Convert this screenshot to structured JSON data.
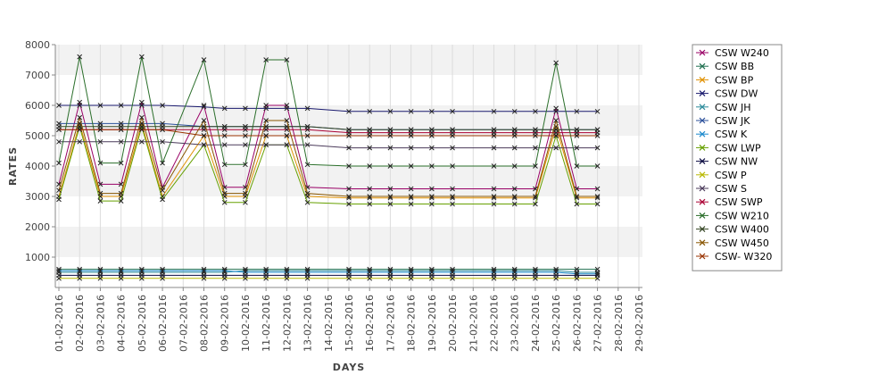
{
  "chart_data": {
    "type": "line",
    "xlabel": "DAYS",
    "ylabel": "RATES",
    "ylim": [
      0,
      8000
    ],
    "yticks": [
      1000,
      2000,
      3000,
      4000,
      5000,
      6000,
      7000,
      8000
    ],
    "grid": "horizontal alternating bands",
    "legend": "right",
    "x": [
      "01-02-2016",
      "02-02-2016",
      "03-02-2016",
      "04-02-2016",
      "05-02-2016",
      "06-02-2016",
      "07-02-2016",
      "08-02-2016",
      "09-02-2016",
      "10-02-2016",
      "11-02-2016",
      "12-02-2016",
      "13-02-2016",
      "14-02-2016",
      "15-02-2016",
      "16-02-2016",
      "17-02-2016",
      "18-02-2016",
      "19-02-2016",
      "20-02-2016",
      "21-02-2016",
      "22-02-2016",
      "23-02-2016",
      "24-02-2016",
      "25-02-2016",
      "26-02-2016",
      "27-02-2016",
      "28-02-2016",
      "29-02-2016"
    ],
    "series": [
      {
        "name": "CSW  W240",
        "color": "#990066",
        "values": [
          3400,
          6100,
          3400,
          3400,
          6100,
          3300,
          null,
          6000,
          3300,
          3300,
          6000,
          6000,
          3300,
          null,
          3250,
          3250,
          3250,
          3250,
          3250,
          3250,
          null,
          3250,
          3250,
          3250,
          5900,
          3250,
          3250,
          null,
          null
        ]
      },
      {
        "name": "CSW BB",
        "color": "#1f6f4f",
        "values": [
          600,
          600,
          600,
          600,
          600,
          600,
          null,
          600,
          600,
          600,
          600,
          600,
          600,
          null,
          600,
          600,
          600,
          600,
          600,
          600,
          null,
          600,
          600,
          600,
          600,
          600,
          600,
          null,
          null
        ]
      },
      {
        "name": "CSW BP",
        "color": "#e09000",
        "values": [
          3000,
          5400,
          3000,
          3000,
          5400,
          3000,
          null,
          5000,
          3000,
          3000,
          5000,
          5000,
          3000,
          null,
          2950,
          2950,
          2950,
          2950,
          2950,
          2950,
          null,
          2950,
          2950,
          2950,
          5300,
          2950,
          2950,
          null,
          null
        ]
      },
      {
        "name": "CSW DW",
        "color": "#1a1a6e",
        "values": [
          6000,
          6000,
          6000,
          6000,
          6000,
          6000,
          null,
          5950,
          5900,
          5900,
          5900,
          5900,
          5900,
          null,
          5800,
          5800,
          5800,
          5800,
          5800,
          5800,
          null,
          5800,
          5800,
          5800,
          5800,
          5800,
          5800,
          null,
          null
        ]
      },
      {
        "name": "CSW JH",
        "color": "#2a8a9a",
        "values": [
          500,
          500,
          500,
          500,
          500,
          500,
          null,
          500,
          500,
          550,
          550,
          550,
          550,
          null,
          550,
          550,
          550,
          550,
          550,
          550,
          null,
          550,
          550,
          550,
          550,
          500,
          500,
          null,
          null
        ]
      },
      {
        "name": "CSW JK",
        "color": "#2a4f9a",
        "values": [
          5400,
          5400,
          5400,
          5400,
          5400,
          5400,
          null,
          5300,
          5300,
          5300,
          5300,
          5300,
          5300,
          null,
          5200,
          5200,
          5200,
          5200,
          5200,
          5200,
          null,
          5200,
          5200,
          5200,
          5200,
          5200,
          5200,
          null,
          null
        ]
      },
      {
        "name": "CSW K",
        "color": "#1a88cc",
        "values": [
          550,
          550,
          550,
          550,
          550,
          550,
          null,
          550,
          550,
          500,
          500,
          500,
          500,
          null,
          500,
          500,
          500,
          500,
          500,
          500,
          null,
          500,
          500,
          500,
          500,
          450,
          450,
          null,
          null
        ]
      },
      {
        "name": "CSW LWP",
        "color": "#66a000",
        "values": [
          2900,
          5300,
          2850,
          2850,
          5300,
          2900,
          null,
          4700,
          2800,
          2800,
          4700,
          4700,
          2800,
          null,
          2750,
          2750,
          2750,
          2750,
          2750,
          2750,
          null,
          2750,
          2750,
          2750,
          5000,
          2750,
          2750,
          null,
          null
        ]
      },
      {
        "name": "CSW NW",
        "color": "#0a0a40",
        "values": [
          400,
          400,
          400,
          400,
          400,
          400,
          null,
          400,
          400,
          400,
          400,
          400,
          400,
          null,
          400,
          400,
          400,
          400,
          400,
          400,
          null,
          400,
          400,
          400,
          400,
          400,
          400,
          null,
          null
        ]
      },
      {
        "name": "CSW P",
        "color": "#b8b800",
        "values": [
          300,
          300,
          300,
          300,
          300,
          300,
          null,
          300,
          300,
          300,
          300,
          300,
          300,
          null,
          300,
          300,
          300,
          300,
          300,
          300,
          null,
          300,
          300,
          300,
          300,
          300,
          300,
          null,
          null
        ]
      },
      {
        "name": "CSW S",
        "color": "#4a3a5a",
        "values": [
          4800,
          4800,
          4800,
          4800,
          4800,
          4800,
          null,
          4700,
          4700,
          4700,
          4700,
          4700,
          4700,
          null,
          4600,
          4600,
          4600,
          4600,
          4600,
          4600,
          null,
          4600,
          4600,
          4600,
          4600,
          4600,
          4600,
          null,
          null
        ]
      },
      {
        "name": "CSW SWP",
        "color": "#aa0033",
        "values": [
          5200,
          5200,
          5200,
          5200,
          5200,
          5200,
          null,
          5200,
          5200,
          5200,
          5200,
          5200,
          5200,
          null,
          5100,
          5100,
          5100,
          5100,
          5100,
          5100,
          null,
          5100,
          5100,
          5100,
          5100,
          5100,
          5100,
          null,
          null
        ]
      },
      {
        "name": "CSW W210",
        "color": "#2a6e2a",
        "values": [
          4100,
          7600,
          4100,
          4100,
          7600,
          4100,
          null,
          7500,
          4050,
          4050,
          7500,
          7500,
          4050,
          null,
          4000,
          4000,
          4000,
          4000,
          4000,
          4000,
          null,
          4000,
          4000,
          4000,
          7400,
          4000,
          4000,
          null,
          null
        ]
      },
      {
        "name": "CSW W400",
        "color": "#334422",
        "values": [
          5300,
          5300,
          5300,
          5300,
          5300,
          5300,
          null,
          5300,
          5300,
          5300,
          5300,
          5300,
          5300,
          null,
          5200,
          5200,
          5200,
          5200,
          5200,
          5200,
          null,
          5200,
          5200,
          5200,
          5200,
          5200,
          5200,
          null,
          null
        ]
      },
      {
        "name": "CSW W450",
        "color": "#885500",
        "values": [
          3200,
          5600,
          3100,
          3100,
          5600,
          3200,
          null,
          5500,
          3100,
          3100,
          5500,
          5500,
          3100,
          null,
          3000,
          3000,
          3000,
          3000,
          3000,
          3000,
          null,
          3000,
          3000,
          3000,
          5500,
          3000,
          3000,
          null,
          null
        ]
      },
      {
        "name": "CSW- W320",
        "color": "#993300",
        "values": [
          5200,
          5200,
          5200,
          5200,
          5200,
          5200,
          null,
          5000,
          5000,
          5000,
          5000,
          5000,
          5000,
          null,
          5000,
          5000,
          5000,
          5000,
          5000,
          5000,
          null,
          5000,
          5000,
          5000,
          5000,
          5000,
          5000,
          null,
          null
        ]
      }
    ]
  }
}
